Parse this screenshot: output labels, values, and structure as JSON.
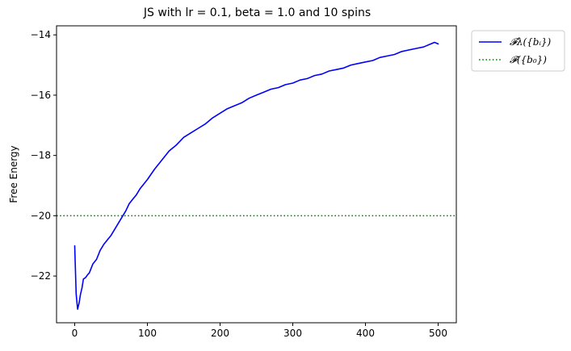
{
  "chart_data": {
    "type": "line",
    "title": "JS with lr = 0.1, beta = 1.0 and 10 spins",
    "xlabel": "",
    "ylabel": "Free Energy",
    "xlim": [
      -25,
      525
    ],
    "ylim": [
      -23.55,
      -13.7
    ],
    "xticks": [
      0,
      100,
      200,
      300,
      400,
      500
    ],
    "yticks": [
      -22,
      -20,
      -18,
      -16,
      -14
    ],
    "grid": false,
    "legend_position": "outside-top-right",
    "series": [
      {
        "name": "𝓕λ({bᵢ})",
        "color": "#0000ff",
        "style": "solid",
        "x": [
          0,
          2,
          4,
          6,
          8,
          10,
          12,
          15,
          18,
          20,
          25,
          30,
          35,
          40,
          45,
          50,
          55,
          60,
          65,
          70,
          75,
          80,
          85,
          90,
          95,
          100,
          110,
          120,
          130,
          140,
          150,
          160,
          170,
          180,
          190,
          200,
          210,
          220,
          230,
          240,
          250,
          260,
          270,
          280,
          290,
          300,
          310,
          320,
          330,
          340,
          350,
          360,
          370,
          380,
          390,
          400,
          410,
          420,
          430,
          440,
          450,
          460,
          470,
          480,
          490,
          495,
          500
        ],
        "y": [
          -21.0,
          -22.6,
          -23.1,
          -22.9,
          -22.6,
          -22.4,
          -22.1,
          -22.05,
          -21.95,
          -21.9,
          -21.6,
          -21.45,
          -21.15,
          -20.95,
          -20.8,
          -20.65,
          -20.45,
          -20.25,
          -20.05,
          -19.85,
          -19.6,
          -19.45,
          -19.3,
          -19.1,
          -18.95,
          -18.8,
          -18.45,
          -18.15,
          -17.85,
          -17.65,
          -17.4,
          -17.25,
          -17.1,
          -16.95,
          -16.75,
          -16.6,
          -16.45,
          -16.35,
          -16.25,
          -16.1,
          -16.0,
          -15.9,
          -15.8,
          -15.75,
          -15.65,
          -15.6,
          -15.5,
          -15.45,
          -15.35,
          -15.3,
          -15.2,
          -15.15,
          -15.1,
          -15.0,
          -14.95,
          -14.9,
          -14.85,
          -14.75,
          -14.7,
          -14.65,
          -14.55,
          -14.5,
          -14.45,
          -14.4,
          -14.3,
          -14.25,
          -14.3
        ]
      },
      {
        "name": "𝓕({b₀})",
        "color": "#008000",
        "style": "dotted",
        "y_constant": -20.0
      }
    ]
  }
}
